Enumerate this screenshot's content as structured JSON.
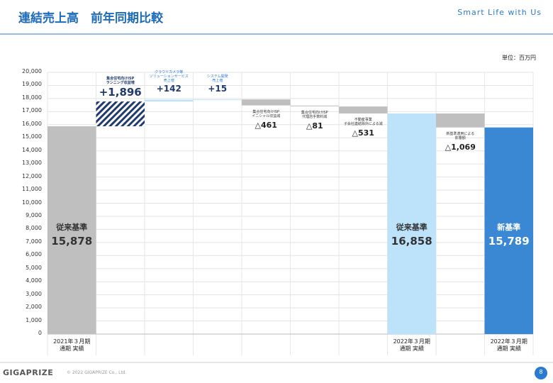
{
  "header": {
    "title": "連結売上高　前年同期比較",
    "tagline": "Smart Life with Us"
  },
  "footer": {
    "logo": "GIGAPRIZE",
    "copyright": "© 2022 GIGAPRIZE Co., Ltd.",
    "page": "8"
  },
  "chart_data": {
    "type": "waterfall",
    "unit": "単位：百万円",
    "categories": [
      "2021年３月期\n通期 実績",
      null,
      null,
      null,
      null,
      null,
      null,
      "2022年３月期\n通期 実績",
      null,
      "2022年３月期\n通期 実績"
    ],
    "measures": [
      "total",
      "relative",
      "relative",
      "relative",
      "relative",
      "relative",
      "relative",
      "total",
      "relative",
      "total"
    ],
    "values": [
      15878,
      1896,
      142,
      15,
      -461,
      -81,
      -531,
      16858,
      -1069,
      15789
    ],
    "value_labels": [
      "15,878",
      "+1,896",
      "+142",
      "+15",
      "△461",
      "△81",
      "△531",
      "16,858",
      "△1,069",
      "15,789"
    ],
    "bar_labels": [
      "従来基準",
      "集合住宅向けISP\nランニング収益増",
      "クラウドカメラ等\nソリューションサービス\n売上増",
      "システム開発\n売上増",
      "集合住宅向けISP\nイニシャル収益減",
      "集合住宅向けISP\n代理店手数料減",
      "不動産事業\n子会社連結除外による減",
      "従来基準",
      "新基準適用による\n影響額",
      "新基準"
    ],
    "colors": [
      "#bfbfbf",
      "#1f3a6e",
      "#bde3fb",
      "#bde3fb",
      "#bfbfbf",
      "#d0d0d0",
      "#bfbfbf",
      "#bde3fb",
      "#bfbfbf",
      "#3a87d4"
    ],
    "bar_styles": [
      "solid",
      "hatched",
      "solid",
      "solid",
      "solid",
      "solid",
      "solid",
      "solid",
      "solid",
      "solid"
    ],
    "ylim": [
      0,
      20000
    ],
    "yticks": [
      0,
      {
        "value": 1000,
        "label": "1,000"
      },
      {
        "value": 2000,
        "label": "2,000"
      },
      {
        "value": 3000,
        "label": "3,000"
      },
      {
        "value": 4000,
        "label": "4,000"
      },
      {
        "value": 5000,
        "label": "5,000"
      },
      {
        "value": 6000,
        "label": "6,000"
      },
      {
        "value": 7000,
        "label": "7,000"
      },
      {
        "value": 8000,
        "label": "8,000"
      },
      {
        "value": 9000,
        "label": "9,000"
      },
      {
        "value": 10000,
        "label": "10,000"
      },
      {
        "value": 11000,
        "label": "11,000"
      },
      {
        "value": 12000,
        "label": "12,000"
      },
      {
        "value": 13000,
        "label": "13,000"
      },
      {
        "value": 14000,
        "label": "14,000"
      },
      {
        "value": 15000,
        "label": "15,000"
      },
      {
        "value": 16000,
        "label": "16,000"
      },
      {
        "value": 17000,
        "label": "17,000"
      },
      {
        "value": 18000,
        "label": "18,000"
      },
      {
        "value": 19000,
        "label": "19,000"
      },
      {
        "value": 20000,
        "label": "20,000"
      }
    ],
    "grid": true
  }
}
